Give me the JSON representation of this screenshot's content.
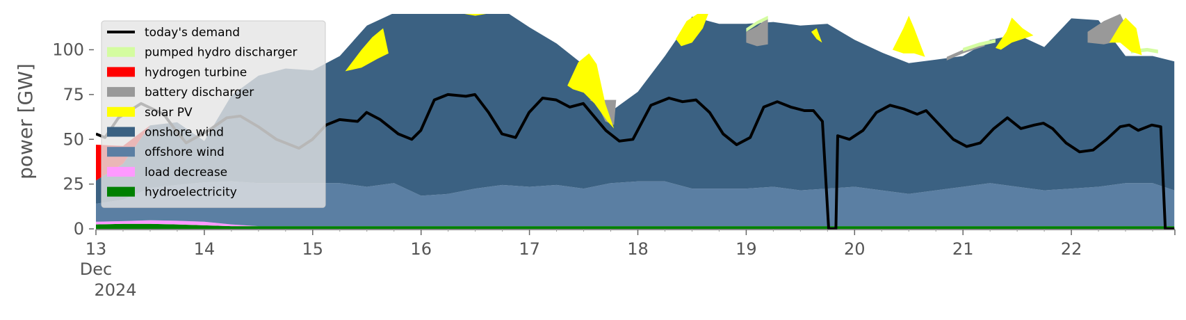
{
  "chart_data": {
    "type": "area",
    "title": "",
    "ylabel": "power [GW]",
    "xlabel": "",
    "ylim": [
      0,
      120
    ],
    "xlim": [
      0,
      9.95
    ],
    "y_ticks": [
      0,
      25,
      50,
      75,
      100
    ],
    "y_tick_labels": [
      "0",
      "25",
      "50",
      "75",
      "100"
    ],
    "x_ticks": [
      0,
      1,
      2,
      3,
      4,
      5,
      6,
      7,
      8,
      9
    ],
    "x_tick_labels": [
      "13",
      "14",
      "15",
      "16",
      "17",
      "18",
      "19",
      "20",
      "21",
      "22"
    ],
    "x_sublabels": [
      "Dec",
      "2024"
    ],
    "legend_position": "top-left",
    "grid": false,
    "x": [
      0,
      0.25,
      0.5,
      0.75,
      1,
      1.25,
      1.5,
      1.75,
      2,
      2.25,
      2.5,
      2.75,
      3,
      3.25,
      3.5,
      3.75,
      4,
      4.25,
      4.5,
      4.75,
      5,
      5.25,
      5.5,
      5.75,
      6,
      6.25,
      6.5,
      6.75,
      7,
      7.25,
      7.5,
      7.75,
      8,
      8.25,
      8.5,
      8.75,
      9,
      9.25,
      9.5,
      9.75,
      9.95
    ],
    "stack_order": [
      "hydroelectricity",
      "load decrease",
      "offshore wind",
      "onshore wind",
      "hydrogen turbine",
      "battery discharger",
      "pumped hydro discharger",
      "solar PV"
    ],
    "series": [
      {
        "name": "hydroelectricity",
        "color": "#008000",
        "values": [
          2.5,
          2.8,
          2.8,
          2.5,
          2,
          1.5,
          1.5,
          1.5,
          1.5,
          1.5,
          1.5,
          1.5,
          1.5,
          1.5,
          1.5,
          1.5,
          1.5,
          1.5,
          1.5,
          1.5,
          1.5,
          1.5,
          1.5,
          1.5,
          1.5,
          1.5,
          1.5,
          1.5,
          1.5,
          1.5,
          1.5,
          1.5,
          1.5,
          1.5,
          1.5,
          1.5,
          1.5,
          1.5,
          1.5,
          1.5,
          1.5
        ]
      },
      {
        "name": "load decrease",
        "color": "#ff99ff",
        "values": [
          1.5,
          1.5,
          2,
          2,
          2,
          1,
          0,
          0,
          0,
          0,
          0,
          0,
          0,
          0,
          0,
          0,
          0,
          0,
          0,
          0,
          0,
          0,
          0,
          0,
          0,
          0,
          0,
          0,
          0,
          0,
          0,
          0,
          0,
          0,
          0,
          0,
          0,
          0,
          0,
          0,
          0
        ]
      },
      {
        "name": "offshore wind",
        "color": "#5b7fa3",
        "values": [
          10,
          12,
          18,
          20,
          22,
          24,
          24,
          24,
          24,
          24,
          22,
          24,
          17,
          18,
          21,
          23,
          22,
          23,
          21,
          24,
          25,
          25,
          21,
          21,
          21,
          22,
          20,
          21,
          22,
          20,
          18,
          20,
          22,
          24,
          22,
          20,
          21,
          22,
          24,
          24,
          20
        ]
      },
      {
        "name": "onshore wind",
        "color": "#3b6182",
        "values": [
          13,
          20,
          35,
          35,
          23,
          48,
          60,
          64,
          63,
          71,
          90,
          95,
          103,
          106,
          104,
          98,
          89,
          79,
          69,
          40,
          50,
          70,
          96,
          92,
          92,
          92,
          92,
          92,
          82,
          77,
          73,
          73,
          73,
          80,
          85,
          80,
          95,
          93,
          71,
          71,
          72
        ]
      },
      {
        "name": "hydrogen turbine",
        "color": "#ff0000",
        "values": [
          20,
          10,
          0,
          0,
          0,
          0,
          0,
          0,
          0,
          0,
          0,
          0,
          0,
          0,
          0,
          0,
          0,
          0,
          0,
          0,
          0,
          0,
          0,
          0,
          0,
          0,
          0,
          0,
          0,
          0,
          0,
          0,
          0,
          0,
          0,
          0,
          0,
          0,
          0,
          0,
          0
        ]
      },
      {
        "name": "battery discharger",
        "color": "#999999",
        "values": [
          0,
          0,
          0,
          0,
          0,
          0,
          0,
          0,
          0,
          0,
          0,
          0,
          0,
          0,
          0,
          0,
          0,
          0,
          0,
          0,
          0,
          0,
          0,
          0,
          0,
          0,
          0,
          0,
          0,
          0,
          0,
          0,
          0,
          0,
          0,
          0,
          0,
          0,
          0,
          0,
          0
        ]
      },
      {
        "name": "pumped hydro discharger",
        "color": "#d4fca0",
        "values": [
          0,
          0,
          0,
          0,
          0,
          0,
          0,
          0,
          0,
          0,
          0,
          0,
          0,
          0,
          0,
          0,
          0,
          0,
          0,
          0,
          0,
          0,
          0,
          0,
          0,
          0,
          0,
          0,
          0,
          0,
          0,
          0,
          0,
          0,
          0,
          0,
          0,
          0,
          0,
          0,
          0
        ]
      },
      {
        "name": "solar PV",
        "color": "#ffff00",
        "values": [
          0,
          0,
          0,
          0,
          0,
          0,
          0,
          0,
          0,
          0,
          0,
          0,
          0,
          0,
          0,
          0,
          0,
          0,
          0,
          0,
          0,
          0,
          0,
          0,
          0,
          0,
          0,
          0,
          0,
          0,
          0,
          0,
          0,
          0,
          0,
          0,
          0,
          0,
          0,
          0,
          0
        ]
      }
    ],
    "overlay_areas": [
      {
        "name": "battery discharger",
        "color": "#999999",
        "points": [
          [
            4.55,
            72
          ],
          [
            4.62,
            70
          ],
          [
            4.7,
            60
          ],
          [
            4.78,
            58
          ],
          [
            4.8,
            72
          ]
        ]
      },
      {
        "name": "battery discharger",
        "color": "#999999",
        "points": [
          [
            6.0,
            110
          ],
          [
            6.1,
            113
          ],
          [
            6.2,
            118
          ],
          [
            6.2,
            103
          ],
          [
            6.1,
            102
          ],
          [
            6.0,
            104
          ]
        ]
      },
      {
        "name": "battery discharger",
        "color": "#999999",
        "points": [
          [
            7.85,
            96
          ],
          [
            8.0,
            100
          ],
          [
            8.2,
            104
          ],
          [
            8.2,
            102
          ],
          [
            8.0,
            98
          ],
          [
            7.85,
            94
          ]
        ]
      },
      {
        "name": "battery discharger",
        "color": "#999999",
        "points": [
          [
            9.15,
            110
          ],
          [
            9.3,
            116
          ],
          [
            9.45,
            120
          ],
          [
            9.55,
            108
          ],
          [
            9.45,
            105
          ],
          [
            9.3,
            103
          ],
          [
            9.15,
            104
          ]
        ]
      },
      {
        "name": "pumped hydro discharger",
        "color": "#d4fca0",
        "points": [
          [
            6.0,
            112
          ],
          [
            6.1,
            116
          ],
          [
            6.2,
            119
          ],
          [
            6.2,
            117
          ],
          [
            6.1,
            114
          ],
          [
            6.0,
            110
          ]
        ]
      },
      {
        "name": "pumped hydro discharger",
        "color": "#d4fca0",
        "points": [
          [
            8.0,
            101
          ],
          [
            8.15,
            104
          ],
          [
            8.3,
            106
          ],
          [
            8.3,
            104
          ],
          [
            8.15,
            102
          ],
          [
            8.0,
            99
          ]
        ]
      },
      {
        "name": "pumped hydro discharger",
        "color": "#d4fca0",
        "points": [
          [
            9.55,
            100
          ],
          [
            9.7,
            101
          ],
          [
            9.8,
            100
          ],
          [
            9.8,
            98
          ],
          [
            9.7,
            99
          ],
          [
            9.55,
            98
          ]
        ]
      },
      {
        "name": "solar PV",
        "color": "#ffff00",
        "points": [
          [
            2.3,
            88
          ],
          [
            2.45,
            100
          ],
          [
            2.55,
            107
          ],
          [
            2.65,
            112
          ],
          [
            2.7,
            98
          ],
          [
            2.6,
            95
          ],
          [
            2.45,
            90
          ]
        ]
      },
      {
        "name": "solar PV",
        "color": "#ffff00",
        "points": [
          [
            3.4,
            120
          ],
          [
            3.5,
            119
          ],
          [
            3.6,
            120
          ]
        ]
      },
      {
        "name": "solar PV",
        "color": "#ffff00",
        "points": [
          [
            4.35,
            80
          ],
          [
            4.45,
            93
          ],
          [
            4.55,
            98
          ],
          [
            4.62,
            92
          ],
          [
            4.7,
            70
          ],
          [
            4.78,
            56
          ],
          [
            4.72,
            60
          ],
          [
            4.6,
            70
          ],
          [
            4.5,
            76
          ],
          [
            4.4,
            78
          ]
        ]
      },
      {
        "name": "solar PV",
        "color": "#ffff00",
        "points": [
          [
            5.35,
            106
          ],
          [
            5.45,
            116
          ],
          [
            5.55,
            120
          ],
          [
            5.65,
            120
          ],
          [
            5.6,
            112
          ],
          [
            5.5,
            104
          ],
          [
            5.4,
            102
          ]
        ]
      },
      {
        "name": "solar PV",
        "color": "#ffff00",
        "points": [
          [
            6.6,
            110
          ],
          [
            6.65,
            112
          ],
          [
            6.7,
            104
          ],
          [
            6.65,
            106
          ]
        ]
      },
      {
        "name": "solar PV",
        "color": "#ffff00",
        "points": [
          [
            7.35,
            100
          ],
          [
            7.45,
            112
          ],
          [
            7.5,
            119
          ],
          [
            7.55,
            112
          ],
          [
            7.65,
            96
          ],
          [
            7.55,
            98
          ],
          [
            7.45,
            98
          ]
        ]
      },
      {
        "name": "solar PV",
        "color": "#ffff00",
        "points": [
          [
            8.3,
            101
          ],
          [
            8.4,
            110
          ],
          [
            8.45,
            118
          ],
          [
            8.55,
            112
          ],
          [
            8.65,
            108
          ],
          [
            8.55,
            106
          ],
          [
            8.45,
            104
          ],
          [
            8.35,
            100
          ]
        ]
      },
      {
        "name": "solar PV",
        "color": "#ffff00",
        "points": [
          [
            9.35,
            104
          ],
          [
            9.45,
            114
          ],
          [
            9.5,
            118
          ],
          [
            9.6,
            112
          ],
          [
            9.65,
            97
          ],
          [
            9.55,
            99
          ],
          [
            9.45,
            104
          ]
        ]
      }
    ],
    "demand": {
      "name": "today's demand",
      "color": "#000000",
      "points": [
        [
          0,
          53
        ],
        [
          0.1,
          51
        ],
        [
          0.25,
          62
        ],
        [
          0.5,
          70
        ],
        [
          0.75,
          64
        ],
        [
          0.9,
          54
        ],
        [
          1,
          48
        ],
        [
          1.25,
          55
        ],
        [
          1.45,
          62
        ],
        [
          1.6,
          63
        ],
        [
          1.8,
          57
        ],
        [
          2,
          50
        ],
        [
          2.25,
          45
        ],
        [
          2.4,
          50
        ],
        [
          2.55,
          58
        ],
        [
          2.7,
          61
        ],
        [
          2.9,
          60
        ],
        [
          3.0,
          65
        ],
        [
          3.15,
          61
        ],
        [
          3.35,
          53
        ],
        [
          3.5,
          50
        ],
        [
          3.6,
          55
        ],
        [
          3.75,
          72
        ],
        [
          3.9,
          75
        ],
        [
          4.1,
          74
        ],
        [
          4.2,
          75
        ],
        [
          4.35,
          65
        ],
        [
          4.5,
          53
        ],
        [
          4.65,
          51
        ],
        [
          4.8,
          65
        ],
        [
          4.95,
          73
        ],
        [
          5.1,
          72
        ],
        [
          5.25,
          68
        ],
        [
          5.4,
          70
        ],
        [
          5.5,
          64
        ],
        [
          5.65,
          55
        ],
        [
          5.8,
          49
        ],
        [
          5.95,
          50
        ],
        [
          6.15,
          69
        ],
        [
          6.35,
          73
        ],
        [
          6.5,
          71
        ],
        [
          6.65,
          72
        ],
        [
          6.8,
          65
        ],
        [
          6.95,
          53
        ],
        [
          7.1,
          47
        ],
        [
          7.25,
          51
        ],
        [
          7.4,
          68
        ],
        [
          7.55,
          71
        ],
        [
          7.7,
          68
        ],
        [
          7.85,
          66
        ],
        [
          7.95,
          66
        ],
        [
          8.05,
          60
        ],
        [
          8.12,
          0
        ],
        [
          8.2,
          0
        ],
        [
          8.22,
          52
        ],
        [
          8.35,
          50
        ],
        [
          8.5,
          55
        ],
        [
          8.65,
          65
        ],
        [
          8.8,
          69
        ],
        [
          8.95,
          67
        ],
        [
          9.1,
          64
        ],
        [
          9.2,
          66
        ],
        [
          9.35,
          58
        ],
        [
          9.5,
          50
        ],
        [
          9.65,
          46
        ],
        [
          9.8,
          48
        ],
        [
          9.95,
          56
        ],
        [
          10.1,
          62
        ],
        [
          10.25,
          56
        ],
        [
          10.4,
          58
        ],
        [
          10.5,
          59
        ],
        [
          10.6,
          56
        ],
        [
          10.75,
          48
        ],
        [
          10.9,
          43
        ],
        [
          11.05,
          44
        ],
        [
          11.2,
          50
        ],
        [
          11.35,
          57
        ],
        [
          11.45,
          58
        ],
        [
          11.55,
          55
        ],
        [
          11.7,
          58
        ],
        [
          11.8,
          57
        ],
        [
          11.85,
          0
        ],
        [
          11.95,
          0
        ]
      ]
    }
  }
}
